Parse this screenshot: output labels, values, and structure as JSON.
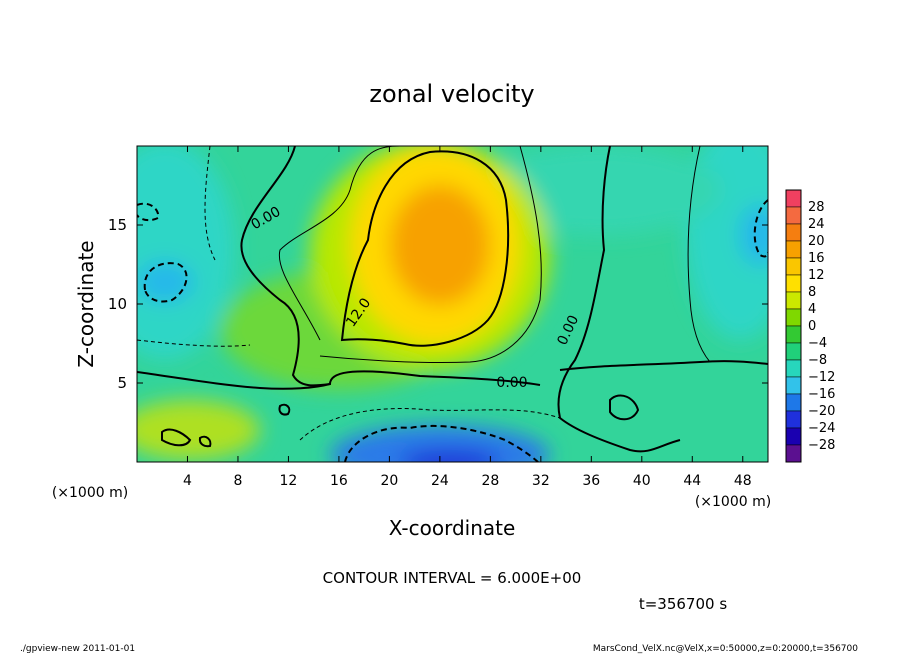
{
  "chart_data": {
    "type": "heatmap",
    "title": "zonal velocity",
    "xlabel": "X-coordinate",
    "ylabel": "Z-coordinate",
    "x_unit_label": "(×1000 m)",
    "x_unit_label_right": "(×1000 m)",
    "xlim": [
      0,
      50
    ],
    "ylim": [
      0,
      20
    ],
    "xticks": [
      "4",
      "8",
      "12",
      "16",
      "20",
      "24",
      "28",
      "32",
      "36",
      "40",
      "44",
      "48"
    ],
    "yticks": [
      "5",
      "10",
      "15"
    ],
    "colorbar_levels": [
      "28",
      "24",
      "20",
      "16",
      "12",
      "8",
      "4",
      "0",
      "−4",
      "−8",
      "−12",
      "−16",
      "−20",
      "−24",
      "−28"
    ],
    "colorbar_colors": [
      "#f04060",
      "#f46a40",
      "#f57e10",
      "#f7a100",
      "#fac600",
      "#ffe000",
      "#cbe800",
      "#7fd800",
      "#33c933",
      "#20d07a",
      "#27d6bc",
      "#32c2ea",
      "#1e78e8",
      "#1f30dc",
      "#1a00b0",
      "#5b1090"
    ],
    "contour_interval": "CONTOUR INTERVAL = 6.000E+00",
    "contour_labels": [
      "0.00",
      "12.0",
      "0.00",
      "0.00"
    ],
    "time_label": "t=356700 s",
    "features": [
      {
        "name": "jet",
        "x": 24,
        "z": 13,
        "value": 18
      },
      {
        "name": "lower-negative",
        "x": 24,
        "z": 1,
        "value": -22
      },
      {
        "name": "left-negative",
        "x": 3,
        "z": 11.5,
        "value": -9
      },
      {
        "name": "right-negative",
        "x": 50,
        "z": 15,
        "value": -9
      },
      {
        "name": "lower-left-positive",
        "x": 3,
        "z": 1.5,
        "value": 10
      }
    ]
  },
  "footer": {
    "program": "./gpview-new  2011-01-01",
    "source": "MarsCond_VelX.nc@VelX,x=0:50000,z=0:20000,t=356700"
  }
}
